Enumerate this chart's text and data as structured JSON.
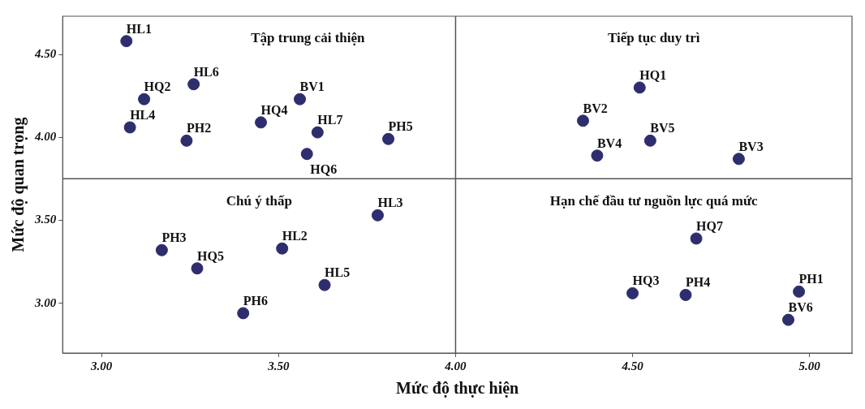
{
  "chart_data": {
    "type": "scatter",
    "xlabel": "Mức độ thực hiện",
    "ylabel": "Mức độ quan trọng",
    "x": [
      3.07,
      3.26,
      3.12,
      3.56,
      3.08,
      3.45,
      3.61,
      3.24,
      3.81,
      3.58,
      4.52,
      4.36,
      4.4,
      4.55,
      4.8,
      3.78,
      3.17,
      3.51,
      3.27,
      3.63,
      3.4,
      4.68,
      4.5,
      4.65,
      4.97,
      4.94
    ],
    "series": [
      {
        "color": "#2e2e6e",
        "values": [
          4.58,
          4.32,
          4.23,
          4.23,
          4.06,
          4.09,
          4.03,
          3.98,
          3.99,
          3.9,
          4.3,
          4.1,
          3.89,
          3.98,
          3.87,
          3.53,
          3.32,
          3.33,
          3.21,
          3.11,
          2.94,
          3.39,
          3.06,
          3.05,
          3.07,
          2.9
        ],
        "value_labels": [
          "HL1",
          "HL6",
          "HQ2",
          "BV1",
          "HL4",
          "HQ4",
          "HL7",
          "PH2",
          "PH5",
          "HQ6",
          "HQ1",
          "BV2",
          "BV4",
          "BV5",
          "BV3",
          "HL3",
          "PH3",
          "HL2",
          "HQ5",
          "HL5",
          "PH6",
          "HQ7",
          "HQ3",
          "PH4",
          "PH1",
          "BV6"
        ]
      }
    ],
    "xlim": [
      2.89,
      5.12
    ],
    "ylim": [
      2.7,
      4.73
    ],
    "xticks": [
      {
        "value": 3,
        "label": "3.00"
      },
      {
        "value": 3.5,
        "label": "3.50"
      },
      {
        "value": 4,
        "label": "4.00"
      },
      {
        "value": 4.5,
        "label": "4.50"
      },
      {
        "value": 5,
        "label": "5.00"
      }
    ],
    "yticks": [
      {
        "value": 3,
        "label": "3.00"
      },
      {
        "value": 3.5,
        "label": "3.50"
      },
      {
        "value": 4,
        "label": "4.00"
      },
      {
        "value": 4.5,
        "label": "4.50"
      }
    ],
    "ref_lines": [
      {
        "axis": "x",
        "value": 4.0,
        "color": "#555555"
      },
      {
        "axis": "y",
        "value": 3.75,
        "color": "#555555"
      }
    ],
    "annotations": [
      "Tập trung cải thiện",
      "Tiếp tục duy trì",
      "Chú ý thấp",
      "Hạn chế đầu tư nguồn lực quá mức"
    ],
    "marker": "circle",
    "grid": false,
    "legend": false
  }
}
